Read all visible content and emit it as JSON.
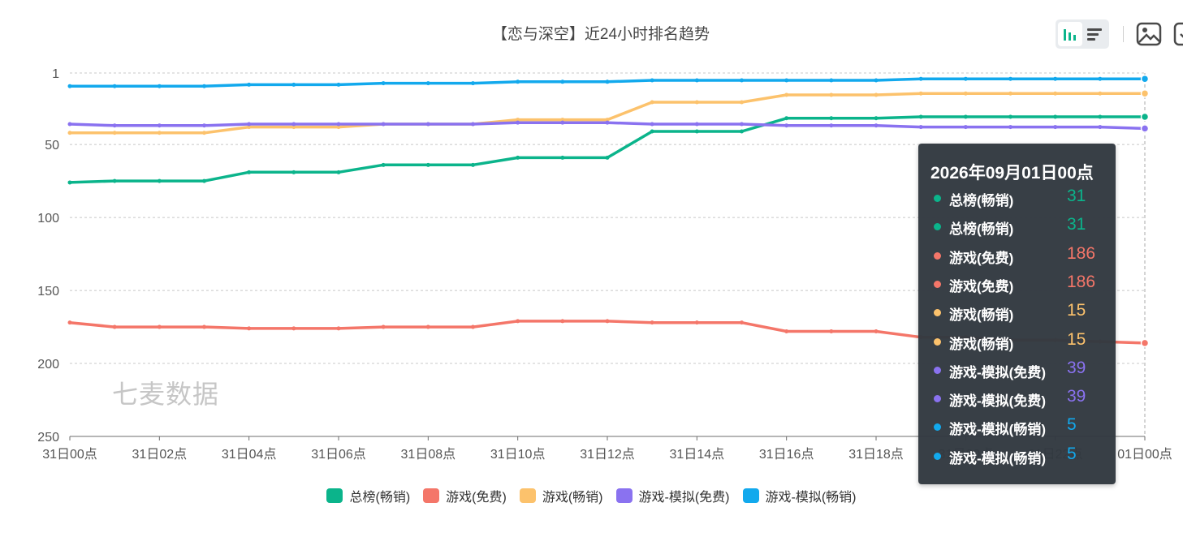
{
  "chart_title": "【恋与深空】近24小时排名趋势",
  "watermark": "七麦数据",
  "toolbar": {
    "chart_type_buttons": [
      "bar-chart-icon",
      "list-icon"
    ],
    "save_image_icon": "image-icon",
    "more_icon": "more-icon"
  },
  "colors": {
    "总榜(畅销)": "#0bb48b",
    "游戏(免费)": "#f47669",
    "游戏(畅销)": "#fcc26c",
    "游戏-模拟(免费)": "#8a72f0",
    "游戏-模拟(畅销)": "#12a9ed"
  },
  "chart_data": {
    "type": "line",
    "title": "【恋与深空】近24小时排名趋势",
    "y_inverted": true,
    "ylim": [
      1,
      250
    ],
    "y_ticks": [
      1,
      50,
      100,
      150,
      200,
      250
    ],
    "x": [
      "31日00点",
      "31日01点",
      "31日02点",
      "31日03点",
      "31日04点",
      "31日05点",
      "31日06点",
      "31日07点",
      "31日08点",
      "31日09点",
      "31日10点",
      "31日11点",
      "31日12点",
      "31日13点",
      "31日14点",
      "31日15点",
      "31日16点",
      "31日17点",
      "31日18点",
      "31日19点",
      "31日20点",
      "31日21点",
      "31日22点",
      "31日23点",
      "01日00点"
    ],
    "x_tick_labels": [
      "31日00点",
      "31日02点",
      "31日04点",
      "31日06点",
      "31日08点",
      "31日10点",
      "31日12点",
      "31日14点",
      "31日16点",
      "31日18点",
      "31日20点",
      "31日22点",
      "01日00点"
    ],
    "grid": true,
    "legend_position": "bottom",
    "series": [
      {
        "name": "总榜(畅销)",
        "values": [
          76,
          75,
          75,
          75,
          69,
          69,
          69,
          64,
          64,
          64,
          59,
          59,
          59,
          41,
          41,
          41,
          32,
          32,
          32,
          31,
          31,
          31,
          31,
          31,
          31
        ]
      },
      {
        "name": "游戏(免费)",
        "values": [
          172,
          175,
          175,
          175,
          176,
          176,
          176,
          175,
          175,
          175,
          171,
          171,
          171,
          172,
          172,
          172,
          178,
          178,
          178,
          182,
          182,
          184,
          184,
          185,
          186
        ]
      },
      {
        "name": "游戏(畅销)",
        "values": [
          42,
          42,
          42,
          42,
          38,
          38,
          38,
          36,
          36,
          36,
          33,
          33,
          33,
          21,
          21,
          21,
          16,
          16,
          16,
          15,
          15,
          15,
          15,
          15,
          15
        ]
      },
      {
        "name": "游戏-模拟(免费)",
        "values": [
          36,
          37,
          37,
          37,
          36,
          36,
          36,
          36,
          36,
          36,
          35,
          35,
          35,
          36,
          36,
          36,
          37,
          37,
          37,
          38,
          38,
          38,
          38,
          38,
          39
        ]
      },
      {
        "name": "游戏-模拟(畅销)",
        "values": [
          10,
          10,
          10,
          10,
          9,
          9,
          9,
          8,
          8,
          8,
          7,
          7,
          7,
          6,
          6,
          6,
          6,
          6,
          6,
          5,
          5,
          5,
          5,
          5,
          5
        ]
      }
    ]
  },
  "tooltip": {
    "title": "2026年09月01日00点",
    "rows": [
      {
        "name": "总榜(畅销)",
        "value": "31",
        "color": "#0bb48b"
      },
      {
        "name": "总榜(畅销)",
        "value": "31",
        "color": "#0bb48b"
      },
      {
        "name": "游戏(免费)",
        "value": "186",
        "color": "#f47669"
      },
      {
        "name": "游戏(免费)",
        "value": "186",
        "color": "#f47669"
      },
      {
        "name": "游戏(畅销)",
        "value": "15",
        "color": "#fcc26c"
      },
      {
        "name": "游戏(畅销)",
        "value": "15",
        "color": "#fcc26c"
      },
      {
        "name": "游戏-模拟(免费)",
        "value": "39",
        "color": "#8a72f0"
      },
      {
        "name": "游戏-模拟(免费)",
        "value": "39",
        "color": "#8a72f0"
      },
      {
        "name": "游戏-模拟(畅销)",
        "value": "5",
        "color": "#12a9ed"
      },
      {
        "name": "游戏-模拟(畅销)",
        "value": "5",
        "color": "#12a9ed"
      }
    ]
  }
}
